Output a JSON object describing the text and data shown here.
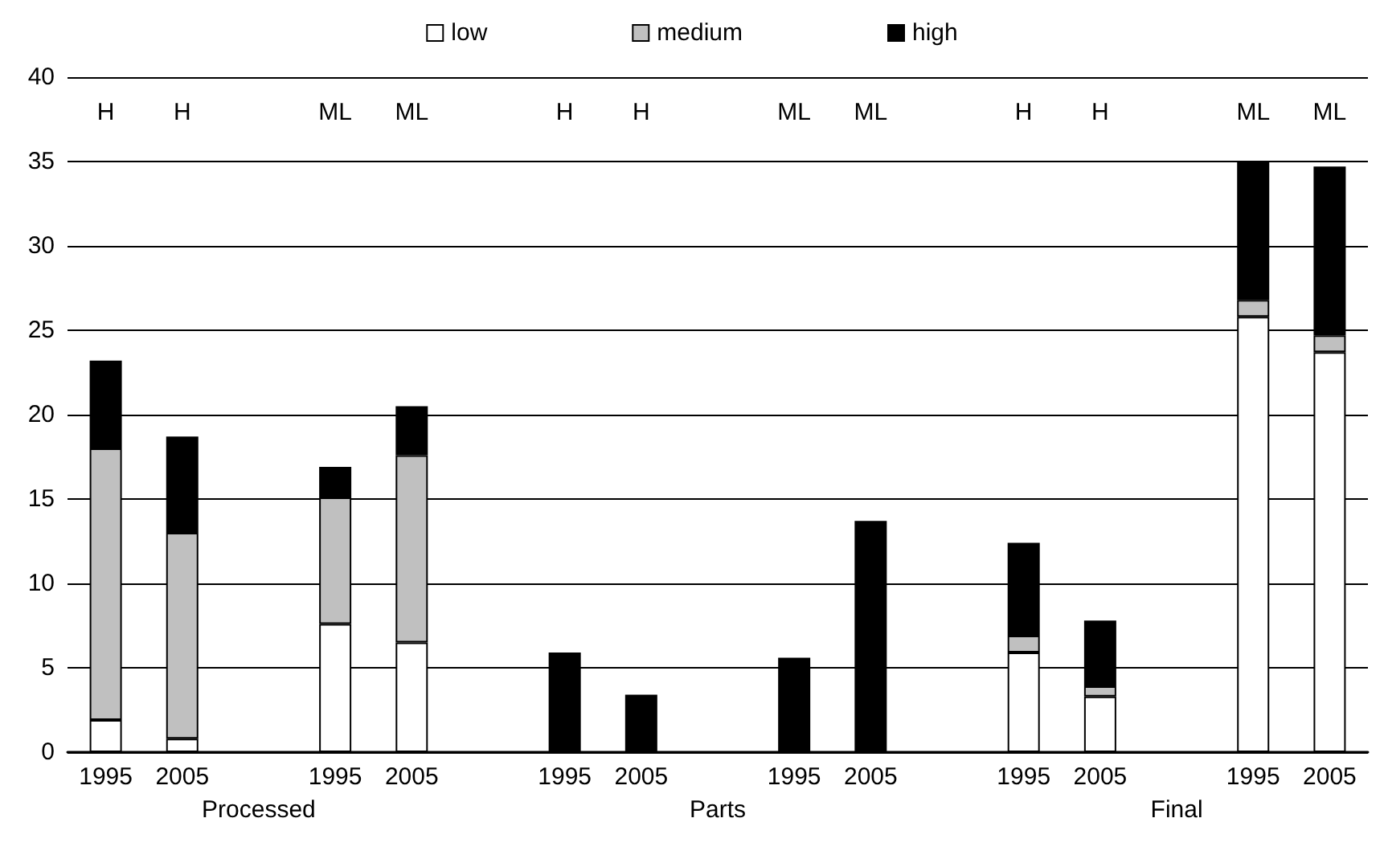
{
  "chart_data": {
    "type": "bar",
    "stacked": true,
    "categories": [
      "1995",
      "2005",
      null,
      "1995",
      "2005",
      null,
      "1995",
      "2005",
      null,
      "1995",
      "2005",
      null,
      "1995",
      "2005",
      null,
      "1995",
      "2005"
    ],
    "series": [
      {
        "name": "low",
        "color": "#ffffff",
        "values": [
          1.9,
          0.8,
          null,
          7.6,
          6.5,
          null,
          0,
          0,
          null,
          0,
          0,
          null,
          5.9,
          3.3,
          null,
          25.8,
          23.7
        ]
      },
      {
        "name": "medium",
        "color": "#c0c0c0",
        "values": [
          16.1,
          12.2,
          null,
          7.5,
          11.1,
          null,
          0,
          0,
          null,
          0,
          0,
          null,
          1.0,
          0.6,
          null,
          1.0,
          1.0
        ]
      },
      {
        "name": "high",
        "color": "#000000",
        "values": [
          5.2,
          5.7,
          null,
          1.8,
          2.9,
          null,
          5.9,
          3.4,
          null,
          5.6,
          13.7,
          null,
          5.5,
          3.9,
          null,
          8.2,
          10.0
        ]
      }
    ],
    "ylim": [
      0,
      40
    ],
    "yticks": [
      0,
      5,
      10,
      15,
      20,
      25,
      30,
      35,
      40
    ],
    "grid": "y",
    "legend": "top",
    "annotations": [
      "Processed",
      "Parts",
      "Final",
      "H",
      "H",
      "ML",
      "ML",
      "H",
      "H",
      "ML",
      "ML",
      "H",
      "H",
      "ML",
      "ML"
    ]
  }
}
